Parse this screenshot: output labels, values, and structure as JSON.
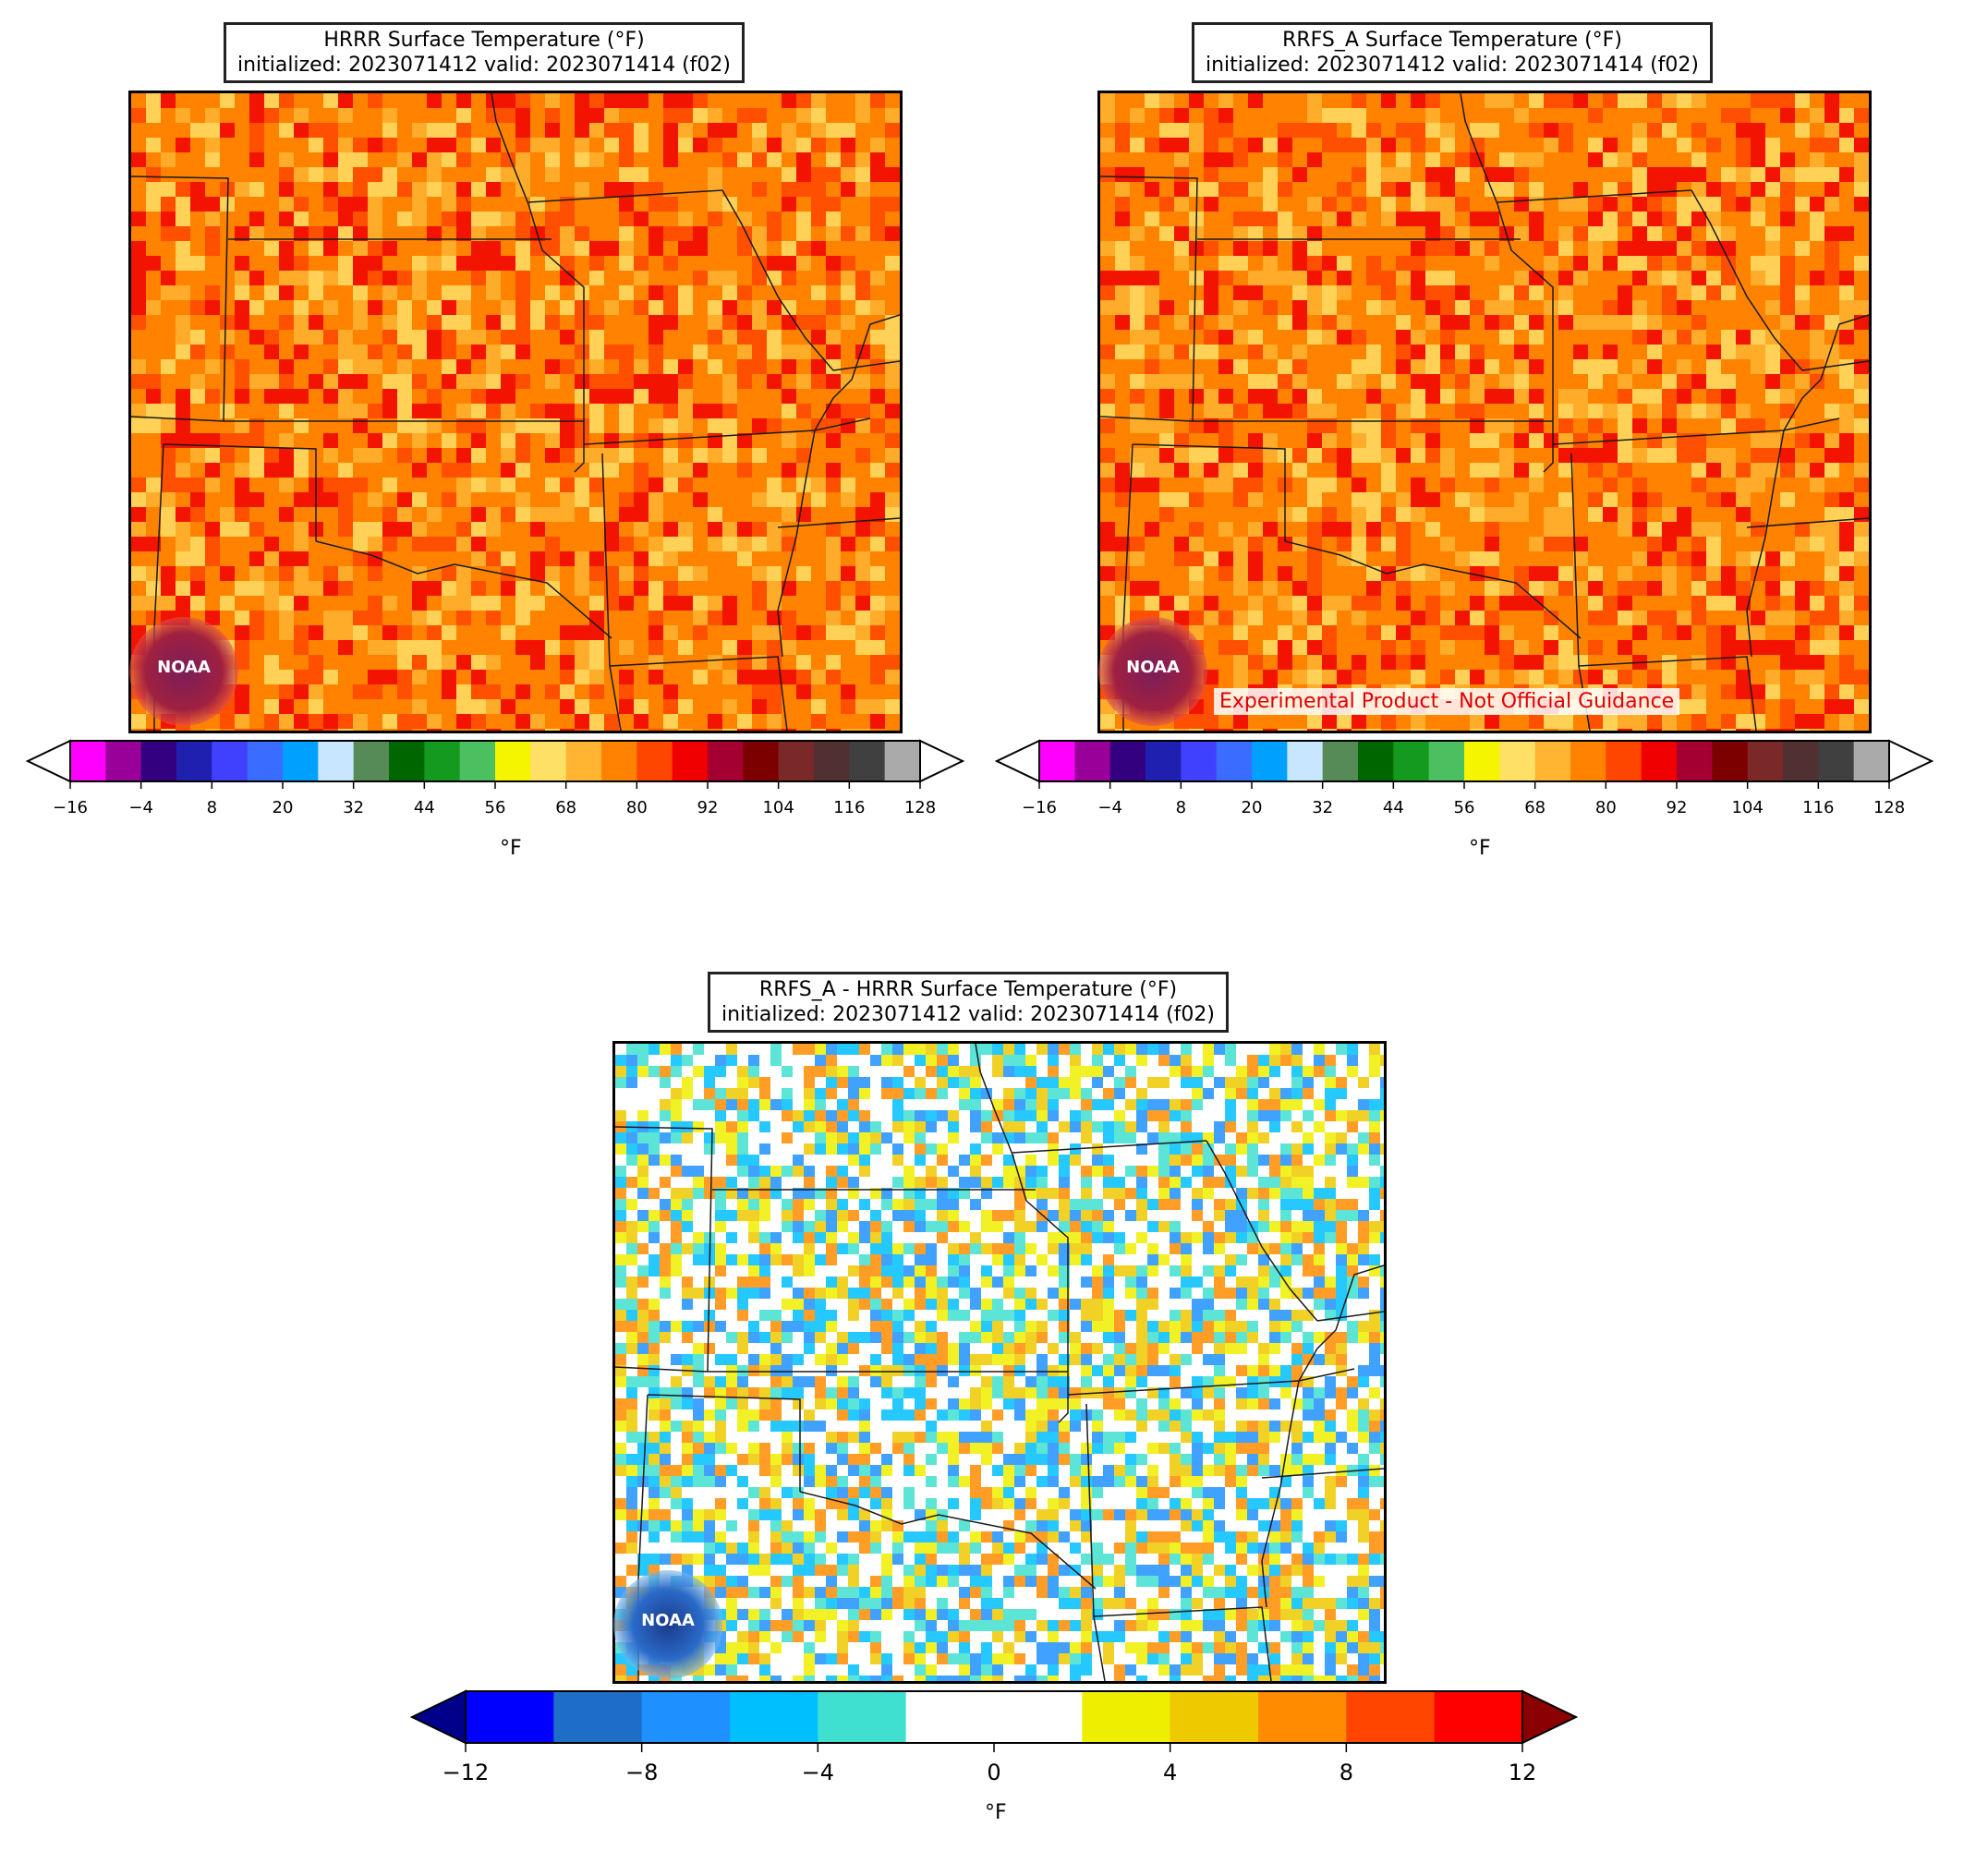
{
  "panels": {
    "hrrr": {
      "title_line1": "HRRR Surface Temperature (°F)",
      "title_line2": "initialized: 2023071412 valid: 2023071414 (f02)"
    },
    "rrfs": {
      "title_line1": "RRFS_A Surface Temperature (°F)",
      "title_line2": "initialized: 2023071412 valid: 2023071414 (f02)",
      "disclaimer": "Experimental Product - Not Official Guidance"
    },
    "diff": {
      "title_line1": "RRFS_A - HRRR Surface Temperature (°F)",
      "title_line2": "initialized: 2023071412 valid: 2023071414 (f02)"
    }
  },
  "logo_text": "NOAA",
  "temperature_colorbar": {
    "unit": "°F",
    "ticks": [
      "−16",
      "−4",
      "8",
      "20",
      "32",
      "44",
      "56",
      "68",
      "80",
      "92",
      "104",
      "116",
      "128"
    ],
    "colors": [
      "#ff00ff",
      "#990099",
      "#330080",
      "#2020b0",
      "#4040ff",
      "#3a6cff",
      "#00a0ff",
      "#c8e6ff",
      "#568a56",
      "#006600",
      "#159a20",
      "#4cc060",
      "#f5f500",
      "#ffe066",
      "#ffb432",
      "#ff8200",
      "#ff4600",
      "#f00000",
      "#a50032",
      "#7d0000",
      "#7a2828",
      "#503030",
      "#404040",
      "#aaaaaa"
    ],
    "extend_low_color": "#ffffff",
    "extend_high_color": "#ffffff"
  },
  "difference_colorbar": {
    "unit": "°F",
    "ticks": [
      "−12",
      "−8",
      "−4",
      "0",
      "4",
      "8",
      "12"
    ],
    "colors": [
      "#0000ff",
      "#1e6ec8",
      "#1e90ff",
      "#00bfff",
      "#40e0d0",
      "#ffffff",
      "#ffffff",
      "#eeee00",
      "#eec900",
      "#ff8c00",
      "#ff4500",
      "#ff0000"
    ],
    "extend_low_color": "#00008b",
    "extend_high_color": "#8b0000"
  },
  "field_palettes": {
    "hrrr": [
      "#ff8200",
      "#ff8200",
      "#ff4600",
      "#ffb432",
      "#ff8200",
      "#ffe066",
      "#f00000"
    ],
    "rrfs": [
      "#ff8200",
      "#ff8200",
      "#ff8200",
      "#ffb432",
      "#ff4600",
      "#ffe066",
      "#f00000"
    ],
    "diff": [
      "#ffffff",
      "#ffffff",
      "#ffffff",
      "#40e0d0",
      "#00bfff",
      "#1e90ff",
      "#eeee00",
      "#eec900",
      "#ff8c00"
    ]
  }
}
